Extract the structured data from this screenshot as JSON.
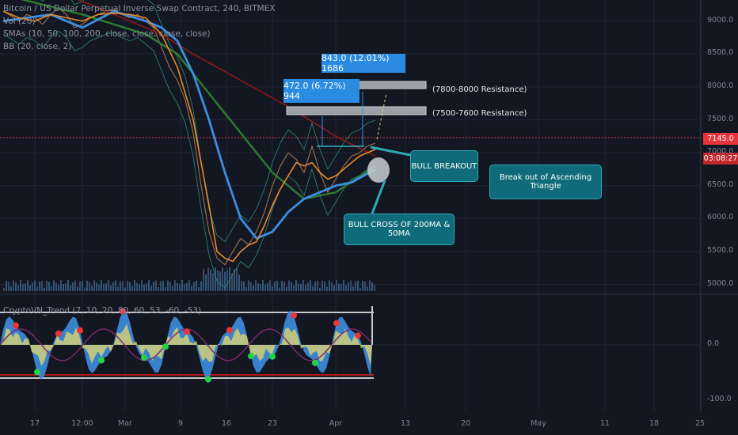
{
  "header": {
    "title": "Bitcoin / US Dollar Perpetual Inverse Swap Contract, 240, BITMEX",
    "vol": "Vol (20)",
    "smas": "SMAs (10, 50, 100, 200, close, close, close, close)",
    "bb": "BB (20, close, 2)",
    "indicator": "CryptoVN_Trend (7, 10, 20, 80, 60, 53, -60, -53)"
  },
  "annotations": {
    "box1": "843.0 (12.01%) 1686",
    "box2": "472.0 (6.72%) 944",
    "res1": "(7800-8000 Resistance)",
    "res2": "(7500-7600 Resistance)",
    "bull_breakout": "BULL BREAKOUT",
    "bull_cross": "BULL CROSS OF 200MA & 50MA",
    "triangle": "Break out of Ascending Triangle"
  },
  "price_tags": {
    "current": "7145.0",
    "countdown": "03:08:27"
  },
  "colors": {
    "background": "#131722",
    "current_price_tag": "#e8343b",
    "countdown_tag": "#c2282e",
    "callout_fill": "#0f6b7a",
    "blue_box": "#2a8be0",
    "sma_blue": "#3d8ee0",
    "sma_green": "#2e7d32",
    "sma_red": "#8b1a1a",
    "sma_orange": "#e88b2a",
    "osc_fill_blue": "#3d8ee0",
    "osc_fill_yellow": "#e6d86a"
  },
  "chart_data": {
    "type": "line",
    "y_axis_ticks": [
      "9000.0",
      "8500.0",
      "8000.0",
      "7500.0",
      "7000.0",
      "6500.0",
      "6000.0",
      "5500.0",
      "5000.0"
    ],
    "x_axis_ticks": [
      "17",
      "12:00",
      "Mar",
      "9",
      "16",
      "23",
      "Apr",
      "13",
      "20",
      "May",
      "11",
      "18",
      "25"
    ],
    "indicator_ticks": [
      "0.0",
      "-100.0"
    ],
    "ylim": [
      4900,
      9200
    ],
    "series": [
      {
        "name": "Price",
        "x": [
          0,
          10,
          20,
          30,
          40,
          50,
          60,
          70,
          80,
          90,
          100,
          110,
          120,
          130,
          140,
          150,
          160,
          170,
          180,
          190,
          200,
          210,
          220,
          230,
          240,
          250,
          260,
          270,
          280,
          290,
          300,
          310,
          320,
          330,
          340,
          350,
          360,
          370,
          380,
          390,
          400,
          410,
          420,
          430,
          440,
          450,
          460,
          470
        ],
        "values": [
          9150,
          9080,
          9000,
          9100,
          9050,
          8950,
          9100,
          9200,
          9100,
          8900,
          8950,
          9050,
          9100,
          9150,
          9180,
          9100,
          9050,
          9100,
          9000,
          8900,
          8600,
          8300,
          8100,
          7800,
          7300,
          6500,
          5800,
          5400,
          5300,
          5500,
          5700,
          5600,
          5800,
          6100,
          6500,
          6800,
          7000,
          6900,
          6700,
          7100,
          6700,
          6400,
          6600,
          6800,
          6950,
          7000,
          7100,
          7145
        ]
      },
      {
        "name": "SMA 200",
        "x": [
          0,
          100,
          200,
          240,
          300,
          360,
          420,
          470
        ],
        "values": [
          9800,
          9300,
          8800,
          8500,
          8100,
          7700,
          7250,
          6950
        ]
      },
      {
        "name": "SMA 100",
        "x": [
          0,
          100,
          180,
          220,
          260,
          300,
          340,
          380,
          420,
          470
        ],
        "values": [
          9400,
          9100,
          8800,
          8500,
          7900,
          7300,
          6700,
          6300,
          6400,
          6800
        ]
      },
      {
        "name": "SMA 50",
        "x": [
          0,
          60,
          100,
          140,
          180,
          200,
          220,
          240,
          260,
          280,
          300,
          320,
          340,
          360,
          380,
          400,
          420,
          440,
          470
        ],
        "values": [
          9000,
          9100,
          8900,
          9150,
          9000,
          8900,
          8700,
          8200,
          7500,
          6700,
          6000,
          5700,
          5800,
          6100,
          6300,
          6400,
          6500,
          6550,
          6750
        ]
      },
      {
        "name": "SMA 10",
        "x": [
          0,
          20,
          40,
          60,
          80,
          100,
          120,
          140,
          160,
          180,
          200,
          220,
          240,
          260,
          270,
          280,
          290,
          300,
          310,
          320,
          330,
          340,
          350,
          360,
          370,
          380,
          390,
          400,
          410,
          420,
          430,
          440,
          450,
          460,
          470
        ],
        "values": [
          9150,
          9050,
          9000,
          9100,
          9050,
          9000,
          9100,
          9120,
          9100,
          9050,
          8800,
          8300,
          7500,
          6200,
          5500,
          5400,
          5350,
          5500,
          5600,
          5650,
          5900,
          6200,
          6450,
          6650,
          6850,
          6800,
          6850,
          6700,
          6600,
          6650,
          6750,
          6850,
          6950,
          7000,
          7050
        ]
      }
    ]
  }
}
